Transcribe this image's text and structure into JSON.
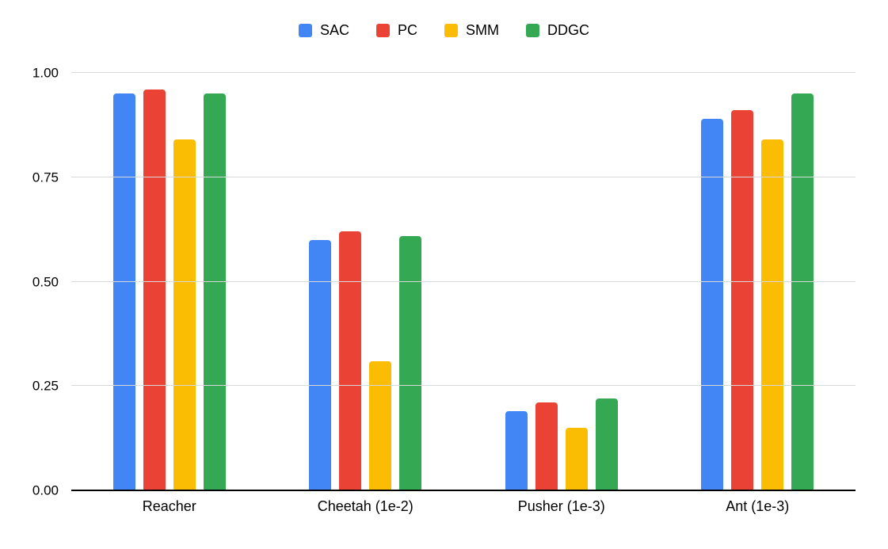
{
  "chart_data": {
    "type": "bar",
    "title": "",
    "categories": [
      "Reacher",
      "Cheetah (1e-2)",
      "Pusher (1e-3)",
      "Ant (1e-3)"
    ],
    "series": [
      {
        "name": "SAC",
        "color": "#4285F4",
        "values": [
          0.95,
          0.6,
          0.19,
          0.89
        ]
      },
      {
        "name": "PC",
        "color": "#EA4335",
        "values": [
          0.96,
          0.62,
          0.21,
          0.91
        ]
      },
      {
        "name": "SMM",
        "color": "#FBBC04",
        "values": [
          0.84,
          0.31,
          0.15,
          0.84
        ]
      },
      {
        "name": "DDGC",
        "color": "#34A853",
        "values": [
          0.95,
          0.61,
          0.22,
          0.95
        ]
      }
    ],
    "xlabel": "",
    "ylabel": "",
    "ylim": [
      0,
      1
    ],
    "yticks": [
      {
        "value": 0.0,
        "label": "0.00"
      },
      {
        "value": 0.25,
        "label": "0.25"
      },
      {
        "value": 0.5,
        "label": "0.50"
      },
      {
        "value": 0.75,
        "label": "0.75"
      },
      {
        "value": 1.0,
        "label": "1.00"
      }
    ],
    "grid": true,
    "legend_position": "top",
    "gridline_color": "#d9d9d9",
    "axis_color": "#000000"
  }
}
